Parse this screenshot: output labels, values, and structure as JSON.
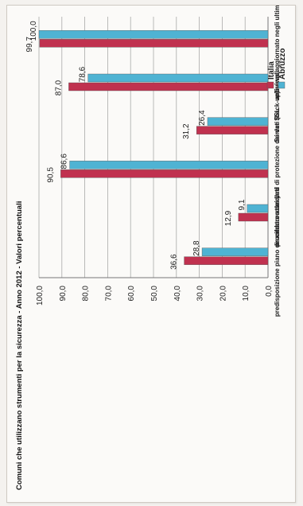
{
  "chart_data": {
    "type": "bar",
    "orientation": "vertical-bars, image rotated 90 degrees",
    "title": "Comuni che utilizzano strumenti per la sicurezza - Anno  2012 - Valori percentuali",
    "categories": [
      "predisposizione piano disaster recovery",
      "cifratura dei dati",
      "procedure standard di protezione dei dati (back-up)",
      "Server SSL",
      "firewall",
      "antivirus aggiornato negli ultimi tre mesi"
    ],
    "series": [
      {
        "name": "Italia",
        "values": [
          36.6,
          12.9,
          90.5,
          31.2,
          87.0,
          99.7
        ],
        "labels": [
          "36,6",
          "12,9",
          "90,5",
          "31,2",
          "87,0",
          "99,7"
        ],
        "color": "#c0314f"
      },
      {
        "name": "Abruzzo",
        "values": [
          28.8,
          9.1,
          86.6,
          26.4,
          78.6,
          100.0
        ],
        "labels": [
          "28,8",
          "9,1",
          "86,6",
          "26,4",
          "78,6",
          "100,0"
        ],
        "color": "#4fb3d3"
      }
    ],
    "ylim": [
      0,
      100
    ],
    "yticks": [
      "0,0",
      "10,0",
      "20,0",
      "30,0",
      "40,0",
      "50,0",
      "60,0",
      "70,0",
      "80,0",
      "90,0",
      "100,0"
    ],
    "grid": true,
    "legend": "right"
  }
}
